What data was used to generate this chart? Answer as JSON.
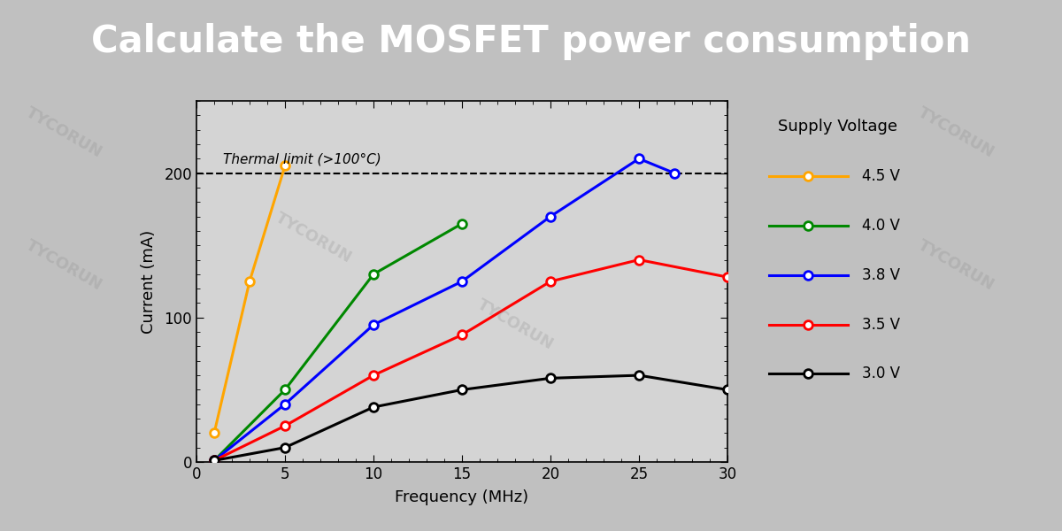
{
  "title": "Calculate the MOSFET power consumption",
  "title_bg_color": "#2d2d2d",
  "title_text_color": "#ffffff",
  "plot_bg_color": "#d4d4d4",
  "fig_bg_color": "#c0c0c0",
  "xlabel": "Frequency (MHz)",
  "ylabel": "Current (mA)",
  "xlim": [
    0,
    30
  ],
  "ylim": [
    0,
    250
  ],
  "xticks": [
    0,
    5,
    10,
    15,
    20,
    25,
    30
  ],
  "yticks": [
    0,
    100,
    200
  ],
  "thermal_limit_y": 200,
  "thermal_label": "Thermal limit (>100°C)",
  "watermark": "TYCORUN",
  "series": [
    {
      "label": "4.5 V",
      "color": "#FFA500",
      "x": [
        1,
        3,
        5
      ],
      "y": [
        20,
        125,
        205
      ]
    },
    {
      "label": "4.0 V",
      "color": "#008800",
      "x": [
        1,
        5,
        10,
        15
      ],
      "y": [
        1,
        50,
        130,
        165
      ]
    },
    {
      "label": "3.8 V",
      "color": "#0000FF",
      "x": [
        1,
        5,
        10,
        15,
        20,
        25,
        27
      ],
      "y": [
        1,
        40,
        95,
        125,
        170,
        210,
        200
      ]
    },
    {
      "label": "3.5 V",
      "color": "#FF0000",
      "x": [
        1,
        5,
        10,
        15,
        20,
        25,
        30
      ],
      "y": [
        1,
        25,
        60,
        88,
        125,
        140,
        128
      ]
    },
    {
      "label": "3.0 V",
      "color": "#000000",
      "x": [
        1,
        5,
        10,
        15,
        20,
        25,
        30
      ],
      "y": [
        1,
        10,
        38,
        50,
        58,
        60,
        50
      ]
    }
  ],
  "legend_title": "Supply Voltage",
  "legend_title_fontsize": 13,
  "legend_fontsize": 12,
  "axis_label_fontsize": 13,
  "tick_fontsize": 12,
  "title_fontsize": 30
}
